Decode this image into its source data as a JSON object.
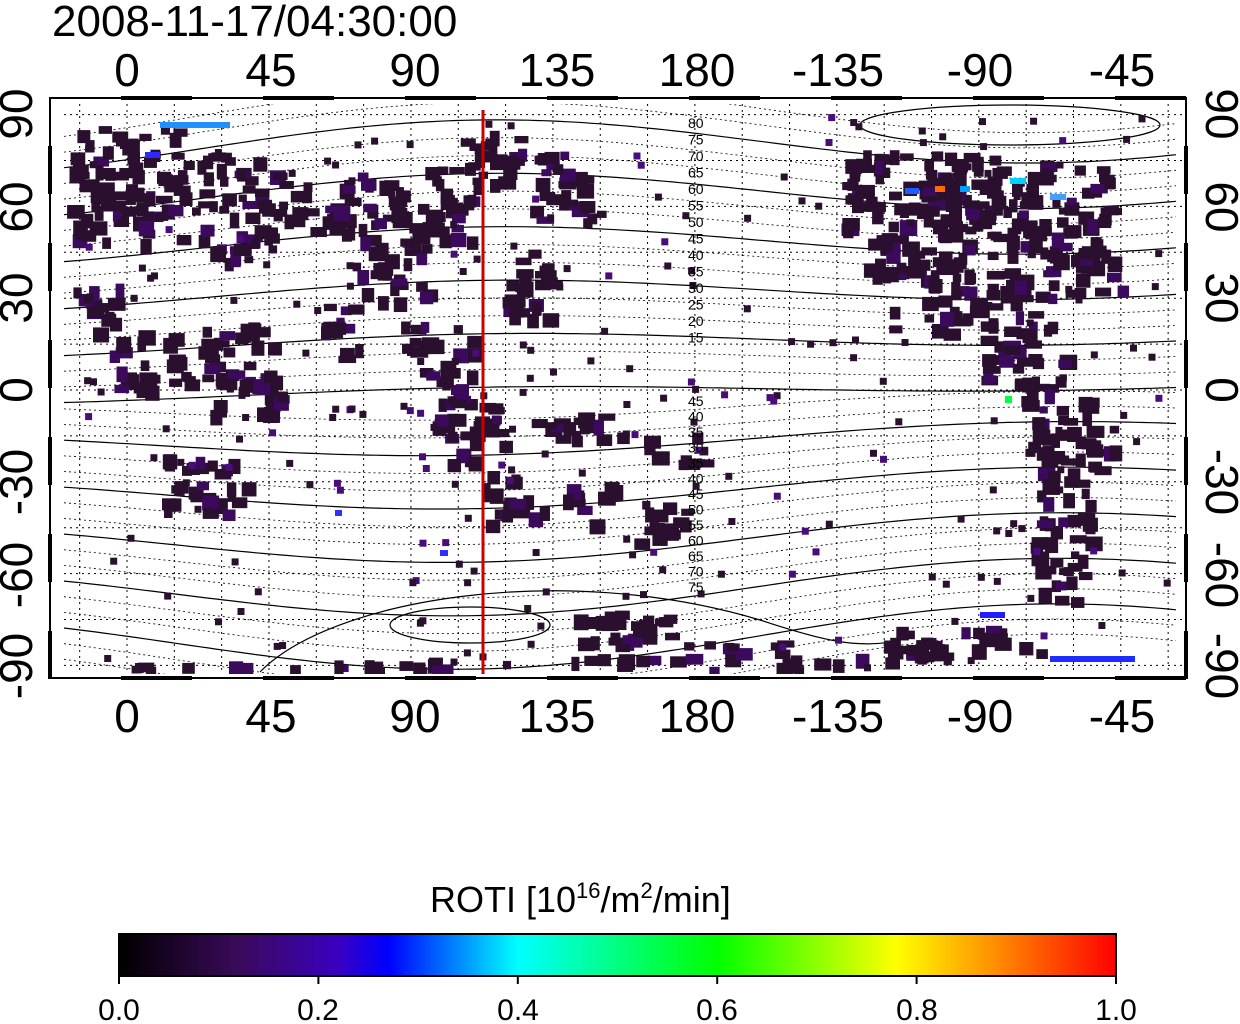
{
  "title": "2008-11-17/04:30:00",
  "map": {
    "x_tick_labels": [
      "0",
      "45",
      "90",
      "135",
      "180",
      "-135",
      "-90",
      "-45"
    ],
    "y_tick_labels_left": [
      "90",
      "60",
      "30",
      "0",
      "-30",
      "-60",
      "-90"
    ],
    "y_tick_labels_right": [
      "90",
      "60",
      "30",
      "0",
      "-30",
      "-60",
      "-90"
    ],
    "x_range": [
      -20,
      320
    ],
    "y_range": [
      -90,
      90
    ],
    "meridian_line_lon": 113,
    "meridian_line_color": "#cc0000",
    "land_color": "#2a0f2e",
    "contour_labels_north": [
      "80",
      "75",
      "70",
      "65",
      "60",
      "55",
      "50",
      "45",
      "40",
      "35",
      "30",
      "25",
      "20",
      "15"
    ],
    "contour_labels_south": [
      "45",
      "40",
      "35",
      "30",
      "35",
      "40",
      "45",
      "50",
      "55",
      "60",
      "65",
      "70",
      "75"
    ]
  },
  "colorbar": {
    "label_main": "ROTI  [10",
    "label_sup1": "16",
    "label_mid": "/m",
    "label_sup2": "2",
    "label_end": "/min]",
    "tick_labels": [
      "0.0",
      "0.2",
      "0.4",
      "0.6",
      "0.8",
      "1.0"
    ],
    "range": [
      0.0,
      1.0
    ],
    "colors": [
      "#000000",
      "#3a0a5a",
      "#0000ff",
      "#00ffff",
      "#00ff00",
      "#ffff00",
      "#ff8000",
      "#ff0000"
    ]
  }
}
